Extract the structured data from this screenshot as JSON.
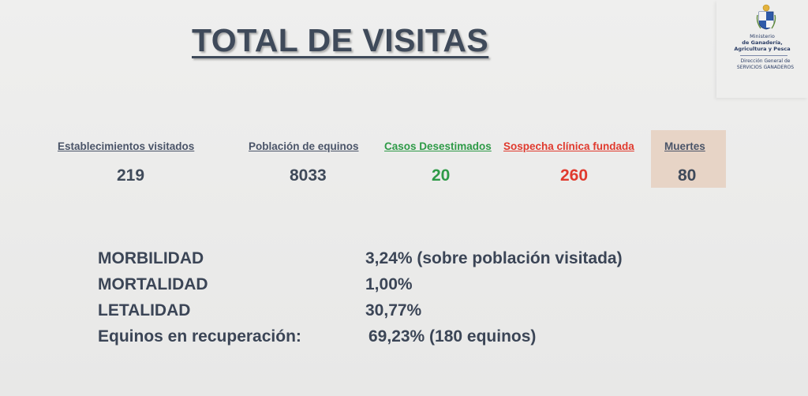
{
  "title": "TOTAL DE VISITAS",
  "logo": {
    "line1": "Ministerio",
    "line2": "de Ganadería,",
    "line3": "Agricultura y Pesca",
    "line4": "Dirección General de",
    "line5": "SERVICIOS GANADEROS",
    "seal_icon": "uruguay-coat-of-arms-icon"
  },
  "stats": [
    {
      "label": "Establecimientos visitados",
      "value": "219",
      "color": "#3f4a5a"
    },
    {
      "label": "Población de equinos",
      "value": "8033",
      "color": "#3f4a5a"
    },
    {
      "label": "Casos Desestimados",
      "value": "20",
      "color": "#2e9a47"
    },
    {
      "label": "Sospecha clínica fundada",
      "value": "260",
      "color": "#e03a2e"
    },
    {
      "label": "Muertes",
      "value": "80",
      "color": "#3f4a5a",
      "highlight": "#e7d4c6"
    }
  ],
  "metrics": [
    {
      "label": "MORBILIDAD",
      "value": "3,24% (sobre población visitada)"
    },
    {
      "label": "MORTALIDAD",
      "value": "1,00%"
    },
    {
      "label": "LETALIDAD",
      "value": "30,77%"
    },
    {
      "label": "Equinos en recuperación:",
      "value": "69,23% (180 equinos)"
    }
  ]
}
